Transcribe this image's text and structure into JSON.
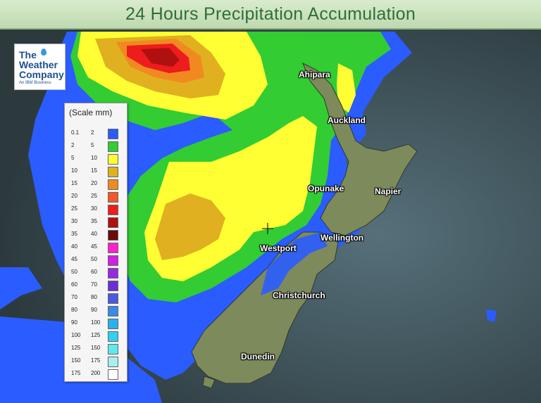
{
  "title": "24 Hours Precipitation Accumulation",
  "logo": {
    "line1": "The",
    "line2": "Weather",
    "line3": "Company",
    "tagline": "An IBM Business"
  },
  "legend": {
    "title": "(Scale mm)",
    "rows": [
      {
        "min": "0.1",
        "max": "2",
        "color": "#2b5cff"
      },
      {
        "min": "2",
        "max": "5",
        "color": "#33cc33"
      },
      {
        "min": "5",
        "max": "10",
        "color": "#ffff33"
      },
      {
        "min": "10",
        "max": "15",
        "color": "#e0b020"
      },
      {
        "min": "15",
        "max": "20",
        "color": "#f08a20"
      },
      {
        "min": "20",
        "max": "25",
        "color": "#f05a28"
      },
      {
        "min": "25",
        "max": "30",
        "color": "#ee1c1c"
      },
      {
        "min": "30",
        "max": "35",
        "color": "#b01010"
      },
      {
        "min": "35",
        "max": "40",
        "color": "#6a0a0a"
      },
      {
        "min": "40",
        "max": "45",
        "color": "#ff22cc"
      },
      {
        "min": "45",
        "max": "50",
        "color": "#d020e0"
      },
      {
        "min": "50",
        "max": "60",
        "color": "#9a28e0"
      },
      {
        "min": "60",
        "max": "70",
        "color": "#6a30d8"
      },
      {
        "min": "70",
        "max": "80",
        "color": "#4a5ae0"
      },
      {
        "min": "80",
        "max": "90",
        "color": "#3a8ae8"
      },
      {
        "min": "90",
        "max": "100",
        "color": "#2ab0f0"
      },
      {
        "min": "100",
        "max": "125",
        "color": "#30d0f0"
      },
      {
        "min": "125",
        "max": "150",
        "color": "#60e8f0"
      },
      {
        "min": "150",
        "max": "175",
        "color": "#a8f0f0"
      },
      {
        "min": "175",
        "max": "200",
        "color": "#ffffff"
      }
    ]
  },
  "cities": [
    "Ahipara",
    "Auckland",
    "Opunake",
    "Napier",
    "Wellington",
    "Westport",
    "Christchurch",
    "Dunedin"
  ]
}
